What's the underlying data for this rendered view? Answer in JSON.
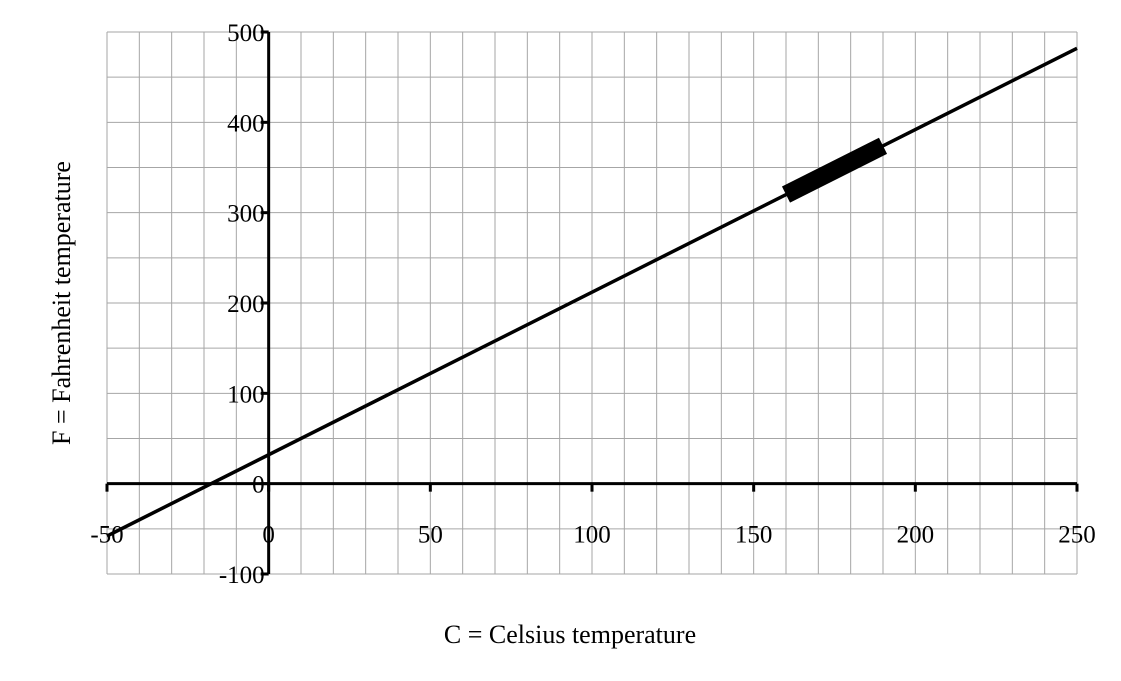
{
  "chart_data": {
    "type": "line",
    "title": "",
    "xlabel": "C = Celsius temperature",
    "ylabel": "F = Fahrenheit temperature",
    "xlim": [
      -50,
      250
    ],
    "ylim": [
      -100,
      500
    ],
    "x_ticks": [
      -50,
      0,
      50,
      100,
      150,
      200,
      250
    ],
    "y_ticks": [
      -100,
      0,
      100,
      200,
      300,
      400,
      500
    ],
    "x_tick_labels": [
      "-50",
      "0",
      "50",
      "100",
      "150",
      "200",
      "250"
    ],
    "y_tick_labels": [
      "-100",
      "0",
      "100",
      "200",
      "300",
      "400",
      "500"
    ],
    "grid": true,
    "x_minor_step": 10,
    "y_minor_step": 50,
    "series": [
      {
        "x": [
          -50,
          250
        ],
        "y": [
          -58,
          482
        ]
      }
    ],
    "highlight_segment": {
      "x": [
        160,
        190
      ],
      "y": [
        320,
        374
      ]
    },
    "colors": {
      "line": "#000000",
      "grid": "#a6a6a6",
      "axes": "#000000"
    }
  }
}
